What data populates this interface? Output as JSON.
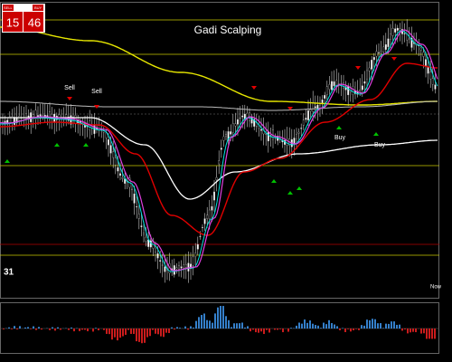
{
  "header": {
    "title": "Gadi Scalping"
  },
  "panel": {
    "sell_label": "SELL",
    "buy_label": "BUY",
    "sell_price": "15",
    "buy_price": "46"
  },
  "signals": [
    {
      "label": "Sell"
    },
    {
      "label": "Sell"
    },
    {
      "label": "Buy"
    },
    {
      "label": "Buy"
    }
  ],
  "timer": "31",
  "now_label": "Now"
}
